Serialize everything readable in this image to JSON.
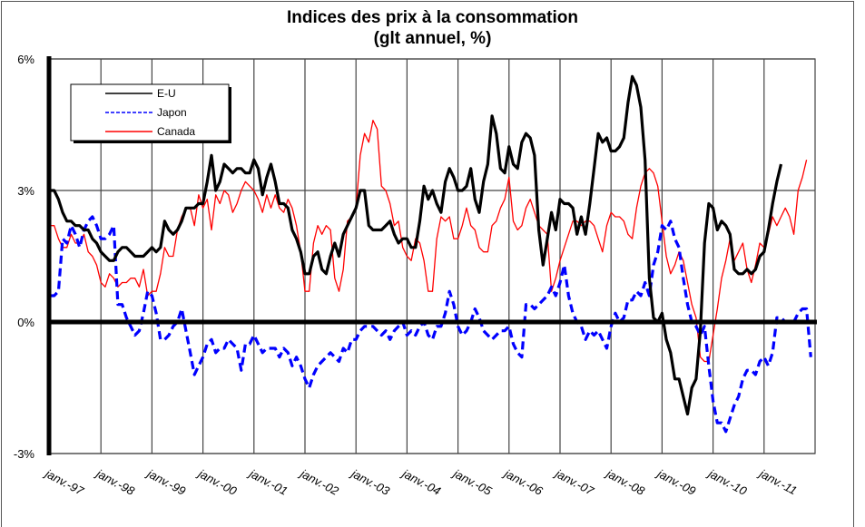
{
  "chart_data": {
    "type": "line",
    "title": "Indices des prix à la consommation",
    "subtitle": "(glt annuel, %)",
    "xlabel": "",
    "ylabel": "",
    "ylim": [
      -3,
      6
    ],
    "yticks": [
      6,
      3,
      0,
      -3
    ],
    "ytick_labels": [
      "6%",
      "3%",
      "0%",
      "-3%"
    ],
    "xtick_labels": [
      "janv.-97",
      "janv.-98",
      "janv.-99",
      "janv.-00",
      "janv.-01",
      "janv.-02",
      "janv.-03",
      "janv.-04",
      "janv.-05",
      "janv.-06",
      "janv.-07",
      "janv.-08",
      "janv.-09",
      "janv.-10",
      "janv.-11"
    ],
    "x_start": "1997-01",
    "x_unit": "month",
    "grid": true,
    "legend_position": "top-left",
    "series": [
      {
        "name": "E-U",
        "color": "#000000",
        "style": "solid",
        "values": [
          3.0,
          3.0,
          2.8,
          2.5,
          2.3,
          2.3,
          2.2,
          2.2,
          2.1,
          2.1,
          1.9,
          1.8,
          1.6,
          1.5,
          1.4,
          1.4,
          1.6,
          1.7,
          1.7,
          1.6,
          1.5,
          1.5,
          1.5,
          1.6,
          1.7,
          1.6,
          1.7,
          2.3,
          2.1,
          2.0,
          2.1,
          2.3,
          2.6,
          2.6,
          2.6,
          2.7,
          2.7,
          3.2,
          3.8,
          3.0,
          3.2,
          3.6,
          3.5,
          3.4,
          3.5,
          3.5,
          3.4,
          3.4,
          3.7,
          3.5,
          2.9,
          3.3,
          3.6,
          3.2,
          2.7,
          2.7,
          2.6,
          2.1,
          1.9,
          1.6,
          1.1,
          1.1,
          1.5,
          1.6,
          1.2,
          1.1,
          1.5,
          1.8,
          1.5,
          2.0,
          2.2,
          2.4,
          2.6,
          3.0,
          3.0,
          2.2,
          2.1,
          2.1,
          2.1,
          2.2,
          2.3,
          2.0,
          1.8,
          1.9,
          1.9,
          1.7,
          1.7,
          2.3,
          3.1,
          2.8,
          3.0,
          2.7,
          2.5,
          3.2,
          3.5,
          3.3,
          3.0,
          3.0,
          3.1,
          3.5,
          2.8,
          2.5,
          3.2,
          3.6,
          4.7,
          4.3,
          3.5,
          3.4,
          4.0,
          3.6,
          3.5,
          4.1,
          4.3,
          4.2,
          3.8,
          2.1,
          1.3,
          1.9,
          2.5,
          2.1,
          2.8,
          2.7,
          2.7,
          2.6,
          2.0,
          2.4,
          2.0,
          2.7,
          3.5,
          4.3,
          4.1,
          4.2,
          3.9,
          3.9,
          4.0,
          4.2,
          5.0,
          5.6,
          5.4,
          4.9,
          3.7,
          1.0,
          0.1,
          0.0,
          0.2,
          -0.4,
          -0.7,
          -1.3,
          -1.3,
          -1.7,
          -2.1,
          -1.5,
          -1.3,
          -0.2,
          1.8,
          2.7,
          2.6,
          2.1,
          2.3,
          2.2,
          2.0,
          1.2,
          1.1,
          1.1,
          1.2,
          1.1,
          1.2,
          1.5,
          1.6,
          2.1,
          2.7,
          3.2,
          3.6
        ]
      },
      {
        "name": "Japon",
        "color": "#0000ff",
        "style": "dashed",
        "values": [
          0.6,
          0.6,
          0.7,
          1.9,
          1.8,
          2.2,
          2.0,
          1.7,
          2.1,
          2.3,
          2.4,
          2.2,
          1.9,
          1.9,
          2.0,
          2.2,
          0.4,
          0.4,
          0.1,
          -0.1,
          -0.3,
          -0.2,
          0.2,
          0.7,
          0.6,
          0.2,
          -0.4,
          -0.4,
          -0.3,
          -0.1,
          0.0,
          0.3,
          -0.2,
          -0.7,
          -1.2,
          -1.0,
          -0.8,
          -0.5,
          -0.4,
          -0.7,
          -0.6,
          -0.6,
          -0.4,
          -0.5,
          -0.6,
          -1.1,
          -0.5,
          -0.5,
          -0.3,
          -0.5,
          -0.7,
          -0.6,
          -0.6,
          -0.6,
          -0.8,
          -0.6,
          -0.7,
          -1.0,
          -0.8,
          -1.0,
          -1.3,
          -1.5,
          -1.2,
          -1.0,
          -0.9,
          -0.8,
          -0.7,
          -0.8,
          -0.9,
          -0.6,
          -0.7,
          -0.4,
          -0.4,
          -0.2,
          -0.1,
          -0.1,
          -0.1,
          -0.2,
          -0.3,
          -0.2,
          -0.4,
          -0.2,
          -0.1,
          0.0,
          -0.3,
          -0.2,
          -0.3,
          -0.1,
          0.0,
          -0.3,
          -0.4,
          -0.1,
          -0.1,
          0.2,
          0.7,
          0.4,
          -0.1,
          -0.3,
          -0.2,
          0.0,
          0.3,
          0.1,
          -0.2,
          -0.3,
          -0.4,
          -0.3,
          -0.2,
          -0.2,
          -0.1,
          -0.5,
          -0.7,
          -0.8,
          0.4,
          0.4,
          0.3,
          0.4,
          0.5,
          0.6,
          0.8,
          0.6,
          0.9,
          1.3,
          0.6,
          0.2,
          0.0,
          -0.1,
          -0.4,
          -0.2,
          -0.3,
          -0.2,
          -0.4,
          -0.6,
          -0.1,
          0.2,
          0.0,
          0.1,
          0.5,
          0.5,
          0.7,
          0.6,
          0.9,
          0.6,
          1.3,
          1.6,
          2.2,
          2.1,
          2.3,
          1.9,
          1.7,
          1.0,
          0.4,
          0.0,
          -0.1,
          -0.3,
          -0.1,
          -1.0,
          -1.8,
          -2.3,
          -2.3,
          -2.5,
          -2.2,
          -1.9,
          -1.7,
          -1.3,
          -1.1,
          -1.1,
          -1.2,
          -0.9,
          -0.8,
          -1.0,
          -0.7,
          0.1,
          0.1,
          0.0,
          0.0,
          0.0,
          0.2,
          0.3,
          0.3,
          -0.8
        ]
      },
      {
        "name": "Canada",
        "color": "#ff0000",
        "style": "solid",
        "values": [
          2.2,
          2.2,
          1.9,
          1.7,
          1.7,
          2.0,
          1.8,
          1.8,
          2.0,
          1.6,
          1.5,
          1.3,
          0.9,
          0.8,
          1.1,
          1.0,
          0.8,
          0.9,
          0.9,
          1.0,
          1.0,
          0.8,
          1.2,
          0.6,
          0.7,
          0.7,
          1.1,
          1.7,
          1.5,
          1.5,
          2.1,
          2.4,
          2.6,
          2.6,
          2.2,
          2.9,
          2.6,
          2.8,
          2.1,
          2.9,
          2.7,
          3.0,
          2.9,
          2.5,
          2.7,
          3.0,
          3.2,
          3.1,
          3.0,
          2.8,
          2.5,
          2.9,
          2.6,
          2.9,
          2.6,
          2.5,
          2.8,
          2.6,
          2.2,
          1.6,
          0.7,
          0.7,
          1.8,
          2.2,
          2.0,
          2.2,
          2.1,
          1.0,
          0.7,
          1.2,
          2.3,
          2.4,
          2.6,
          3.8,
          4.3,
          4.1,
          4.6,
          4.4,
          3.1,
          3.0,
          2.7,
          2.2,
          2.3,
          1.7,
          1.5,
          1.4,
          1.9,
          1.8,
          1.4,
          0.7,
          0.7,
          1.9,
          2.4,
          2.3,
          2.4,
          1.9,
          1.9,
          2.2,
          2.6,
          2.2,
          2.1,
          1.7,
          1.6,
          1.6,
          2.2,
          2.3,
          2.6,
          2.8,
          3.3,
          2.3,
          2.1,
          2.2,
          2.6,
          2.8,
          2.5,
          2.2,
          2.1,
          2.0,
          0.7,
          1.0,
          1.4,
          1.7,
          2.0,
          2.3,
          2.3,
          2.2,
          2.3,
          2.3,
          2.2,
          1.9,
          1.6,
          2.2,
          2.5,
          2.4,
          2.4,
          2.3,
          2.0,
          1.9,
          2.6,
          3.1,
          3.4,
          3.5,
          3.4,
          3.1,
          2.3,
          1.5,
          1.1,
          1.3,
          1.6,
          1.4,
          0.9,
          0.4,
          0.1,
          -0.8,
          -0.9,
          -0.9,
          -0.3,
          0.3,
          1.0,
          1.4,
          1.9,
          1.4,
          1.6,
          1.8,
          1.2,
          0.9,
          1.3,
          1.8,
          1.7,
          2.0,
          2.4,
          2.2,
          2.4,
          2.6,
          2.4,
          2.0,
          3.0,
          3.3,
          3.7
        ]
      }
    ]
  }
}
